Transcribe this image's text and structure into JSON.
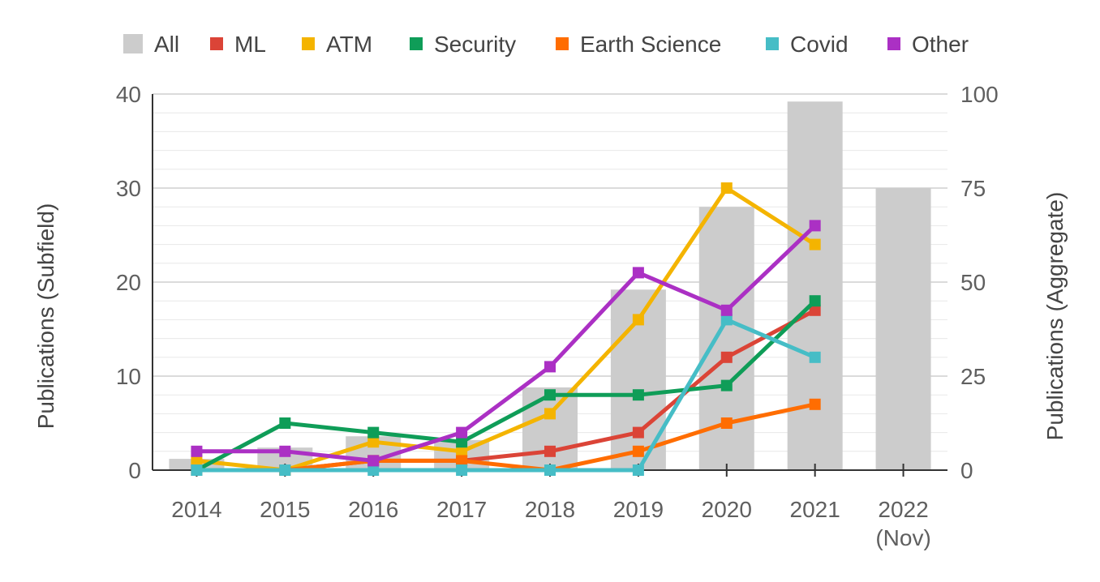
{
  "chart_data": {
    "type": "bar+line",
    "categories": [
      "2014",
      "2015",
      "2016",
      "2017",
      "2018",
      "2019",
      "2020",
      "2021",
      "2022"
    ],
    "category_sublabels": [
      "",
      "",
      "",
      "",
      "",
      "",
      "",
      "",
      "(Nov)"
    ],
    "ylabel_left": "Publications (Subfield)",
    "ylabel_right": "Publications (Aggregate)",
    "ylim_left": [
      0,
      40
    ],
    "ylim_right": [
      0,
      100
    ],
    "yticks_left": [
      "0",
      "10",
      "20",
      "30",
      "40"
    ],
    "yticks_right": [
      "0",
      "25",
      "50",
      "75",
      "100"
    ],
    "grid": true,
    "legend_position": "top",
    "bar_series": {
      "name": "All",
      "axis": "right",
      "color": "#cccccc",
      "values": [
        3,
        6,
        9,
        8,
        22,
        48,
        70,
        98,
        75
      ]
    },
    "line_series": [
      {
        "name": "ML",
        "color": "#db4437",
        "values": [
          0,
          0,
          1,
          1,
          2,
          4,
          12,
          17
        ]
      },
      {
        "name": "ATM",
        "color": "#f4b400",
        "values": [
          1,
          0,
          3,
          2,
          6,
          16,
          30,
          24
        ]
      },
      {
        "name": "Security",
        "color": "#0f9d58",
        "values": [
          0,
          5,
          4,
          3,
          8,
          8,
          9,
          18
        ]
      },
      {
        "name": "Earth Science",
        "color": "#ff6d01",
        "values": [
          0,
          0,
          1,
          1,
          0,
          2,
          5,
          7
        ]
      },
      {
        "name": "Covid",
        "color": "#46bdc6",
        "values": [
          0,
          0,
          0,
          0,
          0,
          0,
          16,
          12
        ]
      },
      {
        "name": "Other",
        "color": "#ab30c4",
        "values": [
          2,
          2,
          1,
          4,
          11,
          21,
          17,
          26
        ]
      }
    ]
  }
}
